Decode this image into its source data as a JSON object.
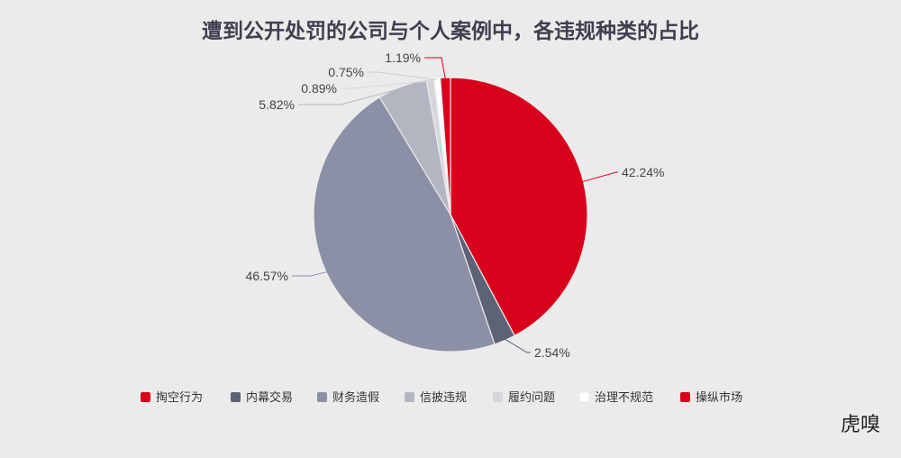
{
  "chart_data": {
    "type": "pie",
    "title": "遭到公开处罚的公司与个人案例中，各违规种类的占比",
    "start": "top",
    "direction": "clockwise",
    "legend_position": "bottom",
    "slices": [
      {
        "name": "掏空行为",
        "value": 42.24,
        "label": "42.24%",
        "color": "#d9001b"
      },
      {
        "name": "内幕交易",
        "value": 2.54,
        "label": "2.54%",
        "color": "#5d6277"
      },
      {
        "name": "财务造假",
        "value": 46.57,
        "label": "46.57%",
        "color": "#8c90a6"
      },
      {
        "name": "信披违规",
        "value": 5.82,
        "label": "5.82%",
        "color": "#b3b5c0"
      },
      {
        "name": "履约问题",
        "value": 0.89,
        "label": "0.89%",
        "color": "#d6d7dd"
      },
      {
        "name": "治理不规范",
        "value": 0.75,
        "label": "0.75%",
        "color": "#ffffff"
      },
      {
        "name": "操纵市场",
        "value": 1.19,
        "label": "1.19%",
        "color": "#d9001b"
      }
    ]
  },
  "brand": {
    "text": "虎嗅"
  }
}
